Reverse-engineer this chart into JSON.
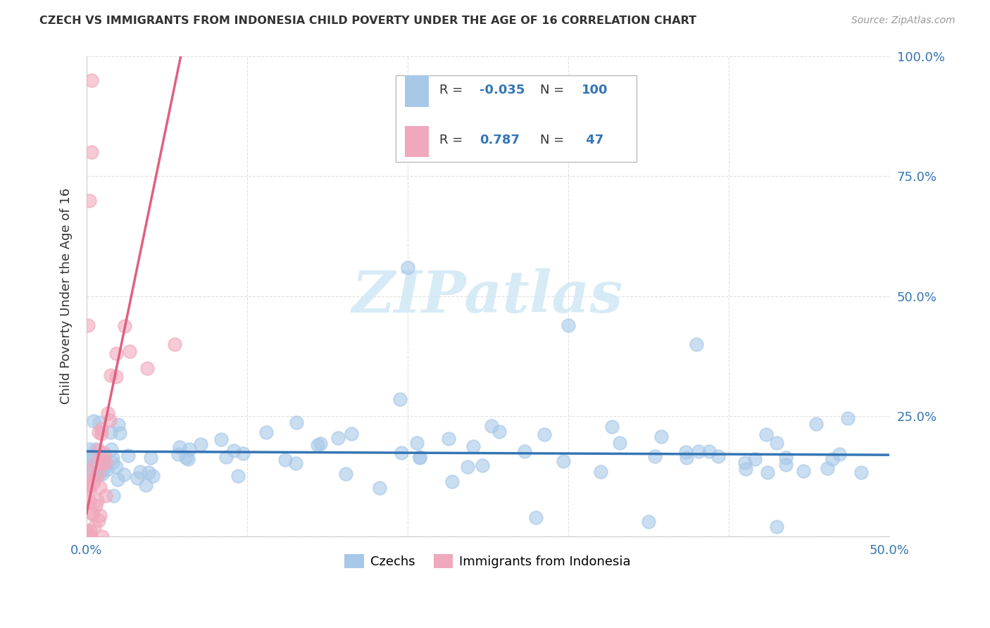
{
  "title": "CZECH VS IMMIGRANTS FROM INDONESIA CHILD POVERTY UNDER THE AGE OF 16 CORRELATION CHART",
  "source": "Source: ZipAtlas.com",
  "ylabel": "Child Poverty Under the Age of 16",
  "xlim": [
    0.0,
    0.5
  ],
  "ylim": [
    0.0,
    1.0
  ],
  "R_czech": -0.035,
  "N_czech": 100,
  "R_indonesia": 0.787,
  "N_indonesia": 47,
  "blue_color": "#3575b5",
  "pink_color": "#e06080",
  "czech_scatter_color": "#a8c8e8",
  "indonesia_scatter_color": "#f0a8bc",
  "watermark_color": "#d0e8f5",
  "grid_color": "#cccccc",
  "tick_color": "#3575b5",
  "title_color": "#333333",
  "source_color": "#999999"
}
